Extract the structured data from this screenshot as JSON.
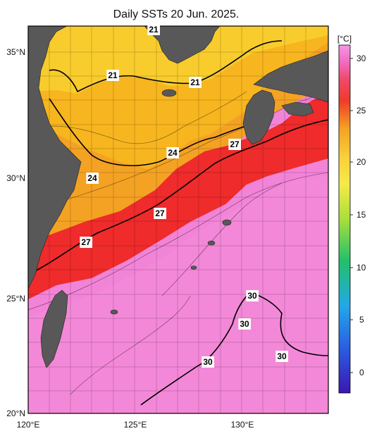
{
  "title": "Daily SSTs 20 Jun. 2025.",
  "axes": {
    "lon_ticks": [
      "120°E",
      "125°E",
      "130°E"
    ],
    "lat_ticks": [
      "35°N",
      "30°N",
      "25°N",
      "20°N"
    ]
  },
  "colorbar": {
    "unit": "[°C]",
    "ticks": [
      "30",
      "25",
      "20",
      "15",
      "10",
      "5",
      "0"
    ]
  },
  "contour_labels": [
    "21",
    "21",
    "21",
    "24",
    "24",
    "27",
    "27",
    "27",
    "30",
    "30",
    "30",
    "30"
  ],
  "colors": {
    "land": "#585858",
    "sst_21": "#f7c21b",
    "sst_24": "#f49a1c",
    "sst_27": "#ef2b2b",
    "sst_30": "#f284d8"
  }
}
